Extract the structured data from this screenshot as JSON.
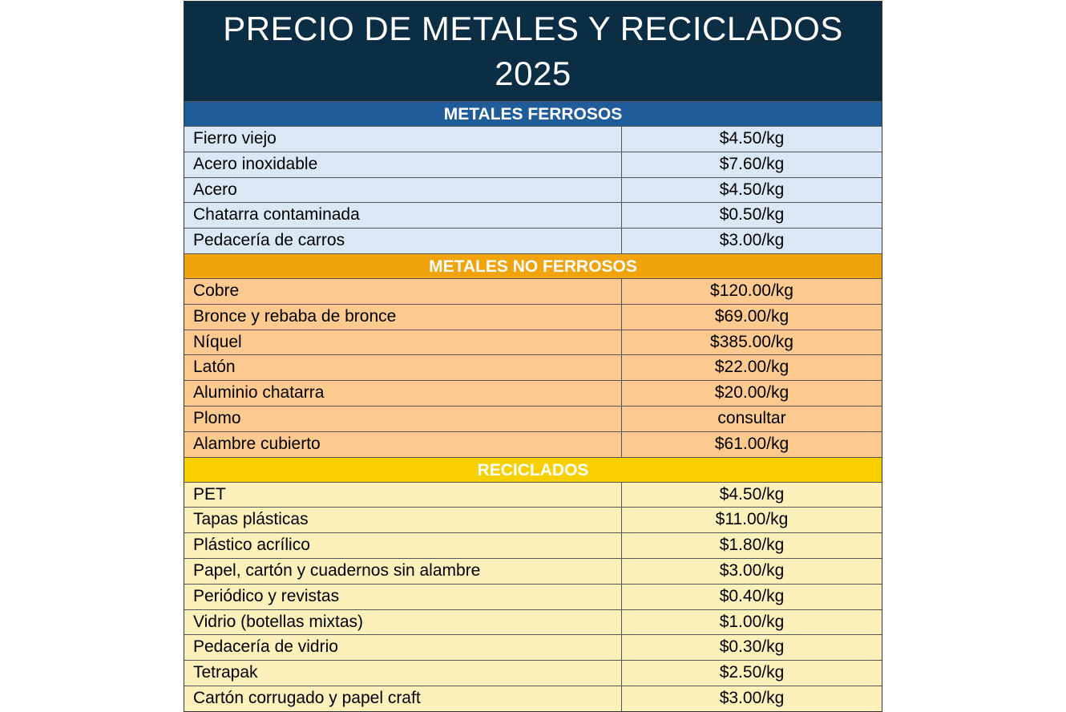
{
  "title": {
    "line1": "PRECIO DE METALES Y RECICLADOS",
    "line2": "2025"
  },
  "colors": {
    "title_bg": "#0b2e45",
    "ferrosos_header": "#1f5c99",
    "ferrosos_row": "#dae8f6",
    "noferrosos_header": "#f0a30a",
    "noferrosos_row": "#fcc98f",
    "reciclados_header": "#f8d000",
    "reciclados_row": "#fdf1bb"
  },
  "sections": [
    {
      "title": "METALES FERROSOS",
      "items": [
        {
          "name": "Fierro viejo",
          "price": "$4.50/kg"
        },
        {
          "name": "Acero inoxidable",
          "price": "$7.60/kg"
        },
        {
          "name": "Acero",
          "price": "$4.50/kg"
        },
        {
          "name": "Chatarra contaminada",
          "price": "$0.50/kg"
        },
        {
          "name": "Pedacería de carros",
          "price": "$3.00/kg"
        }
      ]
    },
    {
      "title": "METALES NO FERROSOS",
      "items": [
        {
          "name": "Cobre",
          "price": "$120.00/kg"
        },
        {
          "name": "Bronce y rebaba de bronce",
          "price": "$69.00/kg"
        },
        {
          "name": "Níquel",
          "price": "$385.00/kg"
        },
        {
          "name": "Latón",
          "price": "$22.00/kg"
        },
        {
          "name": "Aluminio chatarra",
          "price": "$20.00/kg"
        },
        {
          "name": "Plomo",
          "price": "consultar"
        },
        {
          "name": "Alambre cubierto",
          "price": "$61.00/kg"
        }
      ]
    },
    {
      "title": "RECICLADOS",
      "items": [
        {
          "name": "PET",
          "price": "$4.50/kg"
        },
        {
          "name": "Tapas plásticas",
          "price": "$11.00/kg"
        },
        {
          "name": "Plástico acrílico",
          "price": "$1.80/kg"
        },
        {
          "name": "Papel, cartón y cuadernos sin alambre",
          "price": "$3.00/kg"
        },
        {
          "name": "Periódico y revistas",
          "price": "$0.40/kg"
        },
        {
          "name": "Vidrio (botellas mixtas)",
          "price": "$1.00/kg"
        },
        {
          "name": "Pedacería de vidrio",
          "price": "$0.30/kg"
        },
        {
          "name": "Tetrapak",
          "price": "$2.50/kg"
        },
        {
          "name": "Cartón corrugado y papel craft",
          "price": "$3.00/kg"
        }
      ]
    }
  ]
}
